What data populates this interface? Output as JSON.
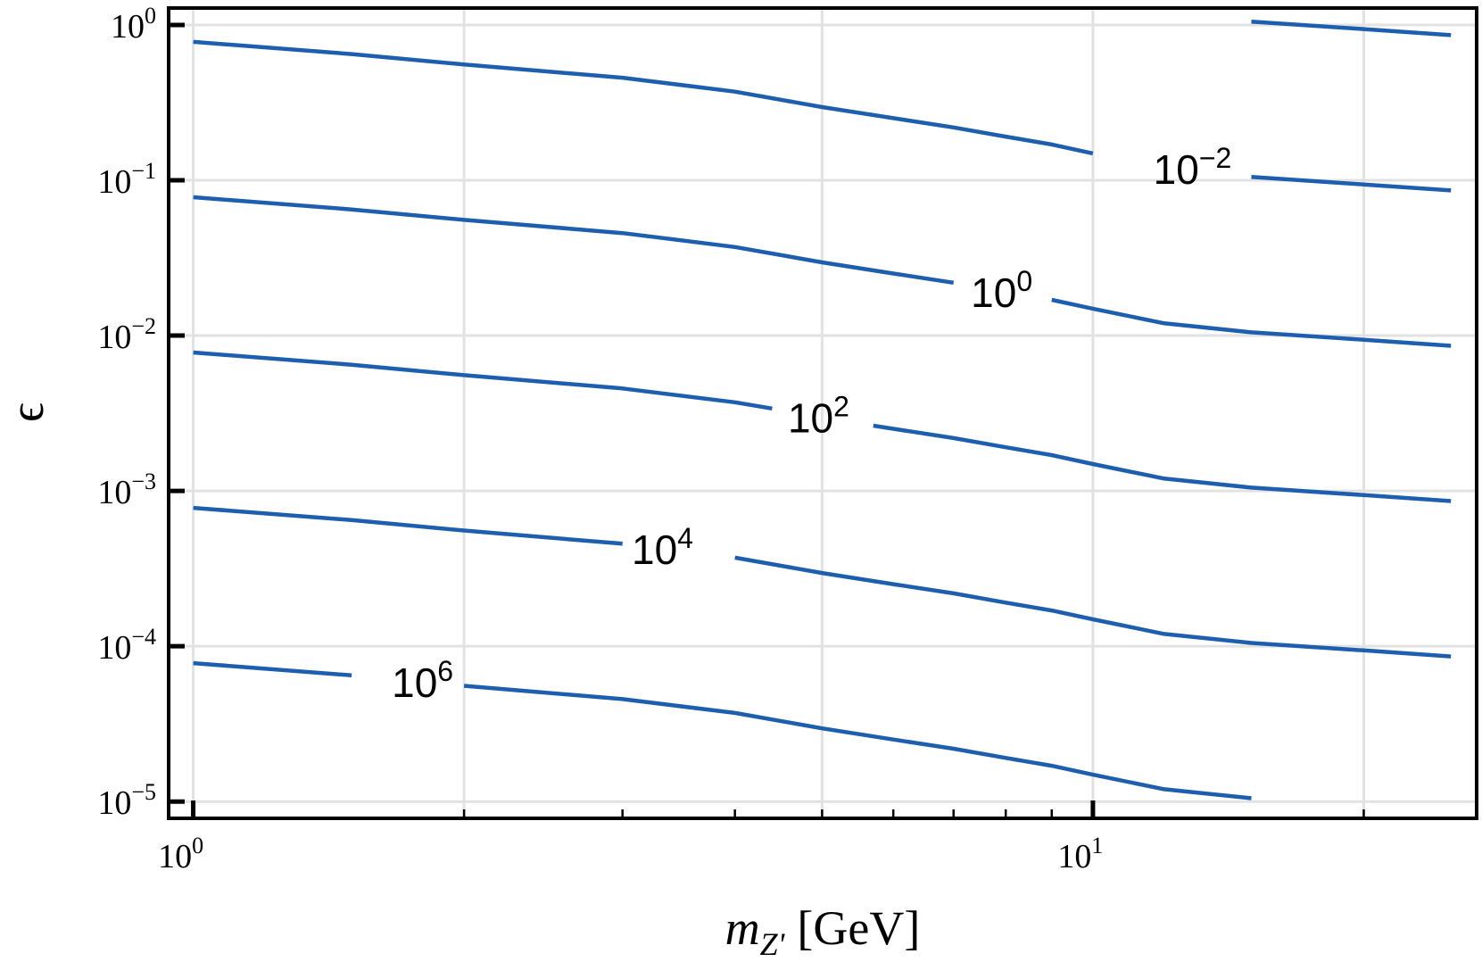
{
  "chart_data": {
    "type": "contour",
    "xlabel": {
      "main": "m",
      "sub": "Z'",
      "unit": "[GeV]"
    },
    "ylabel": "ϵ",
    "xscale": "log",
    "yscale": "log",
    "xlim": [
      0.939,
      26.7
    ],
    "ylim": [
      7.8e-06,
      1.285
    ],
    "xticks": [
      {
        "value": 1,
        "label": "10",
        "exp": "0"
      },
      {
        "value": 10,
        "label": "10",
        "exp": "1"
      }
    ],
    "xminor": [
      2,
      3,
      4,
      5,
      6,
      7,
      8,
      9,
      20
    ],
    "xgrid": [
      1,
      2,
      5,
      10,
      20
    ],
    "yticks": [
      {
        "value": 1,
        "label": "10",
        "exp": "0"
      },
      {
        "value": 0.1,
        "label": "10",
        "exp": "−1"
      },
      {
        "value": 0.01,
        "label": "10",
        "exp": "−2"
      },
      {
        "value": 0.001,
        "label": "10",
        "exp": "−3"
      },
      {
        "value": 0.0001,
        "label": "10",
        "exp": "−4"
      },
      {
        "value": 1e-05,
        "label": "10",
        "exp": "−5"
      }
    ],
    "grid": true,
    "color": "#1d5fae",
    "series": [
      {
        "label": {
          "base": "10",
          "exp": "−2"
        },
        "x": [
          1,
          1.5,
          2,
          3,
          4,
          5,
          6,
          7,
          8,
          9,
          10,
          13.2,
          15,
          20,
          25
        ],
        "values": [
          0.778,
          0.649,
          0.556,
          0.457,
          0.372,
          0.296,
          0.251,
          0.219,
          0.191,
          0.17,
          0.149,
          null,
          0.105,
          0.094,
          0.086
        ]
      },
      {
        "label": {
          "base": "10",
          "exp": "0"
        },
        "x": [
          1,
          1.5,
          2,
          3,
          4,
          5,
          6,
          7,
          8.1,
          9,
          10,
          12,
          15,
          20,
          25
        ],
        "values": [
          0.0778,
          0.0649,
          0.0556,
          0.0457,
          0.0372,
          0.0296,
          0.0251,
          0.0219,
          null,
          0.017,
          0.0149,
          0.012,
          0.0105,
          0.0094,
          0.0086
        ]
      },
      {
        "label": {
          "base": "10",
          "exp": "2"
        },
        "x": [
          1,
          1.5,
          2,
          3,
          4,
          4.4,
          5.07,
          5.7,
          6,
          7,
          8,
          9,
          10,
          12,
          15,
          20,
          25
        ],
        "values": [
          0.00778,
          0.00649,
          0.00556,
          0.00457,
          0.00372,
          0.00339,
          null,
          0.00263,
          0.00251,
          0.00219,
          0.00191,
          0.0017,
          0.00149,
          0.0012,
          0.00105,
          0.00094,
          0.00086
        ]
      },
      {
        "label": {
          "base": "10",
          "exp": "4"
        },
        "x": [
          1,
          1.5,
          2,
          3,
          3.4,
          4,
          5,
          6,
          7,
          8,
          9,
          10,
          12,
          15,
          20,
          25
        ],
        "values": [
          0.000778,
          0.000649,
          0.000556,
          0.000457,
          null,
          0.000372,
          0.000296,
          0.000251,
          0.000219,
          0.000191,
          0.00017,
          0.000149,
          0.00012,
          0.000105,
          9.4e-05,
          8.6e-05
        ]
      },
      {
        "label": {
          "base": "10",
          "exp": "6"
        },
        "x": [
          1,
          1.5,
          1.84,
          2,
          3,
          4,
          5,
          6,
          7,
          8,
          9,
          10,
          12,
          15
        ],
        "values": [
          7.78e-05,
          6.49e-05,
          null,
          5.56e-05,
          4.57e-05,
          3.72e-05,
          2.96e-05,
          2.51e-05,
          2.19e-05,
          1.91e-05,
          1.7e-05,
          1.49e-05,
          1.2e-05,
          1.05e-05
        ]
      },
      {
        "x": [
          15,
          20,
          25
        ],
        "values": [
          1.05,
          0.94,
          0.86
        ]
      }
    ]
  }
}
